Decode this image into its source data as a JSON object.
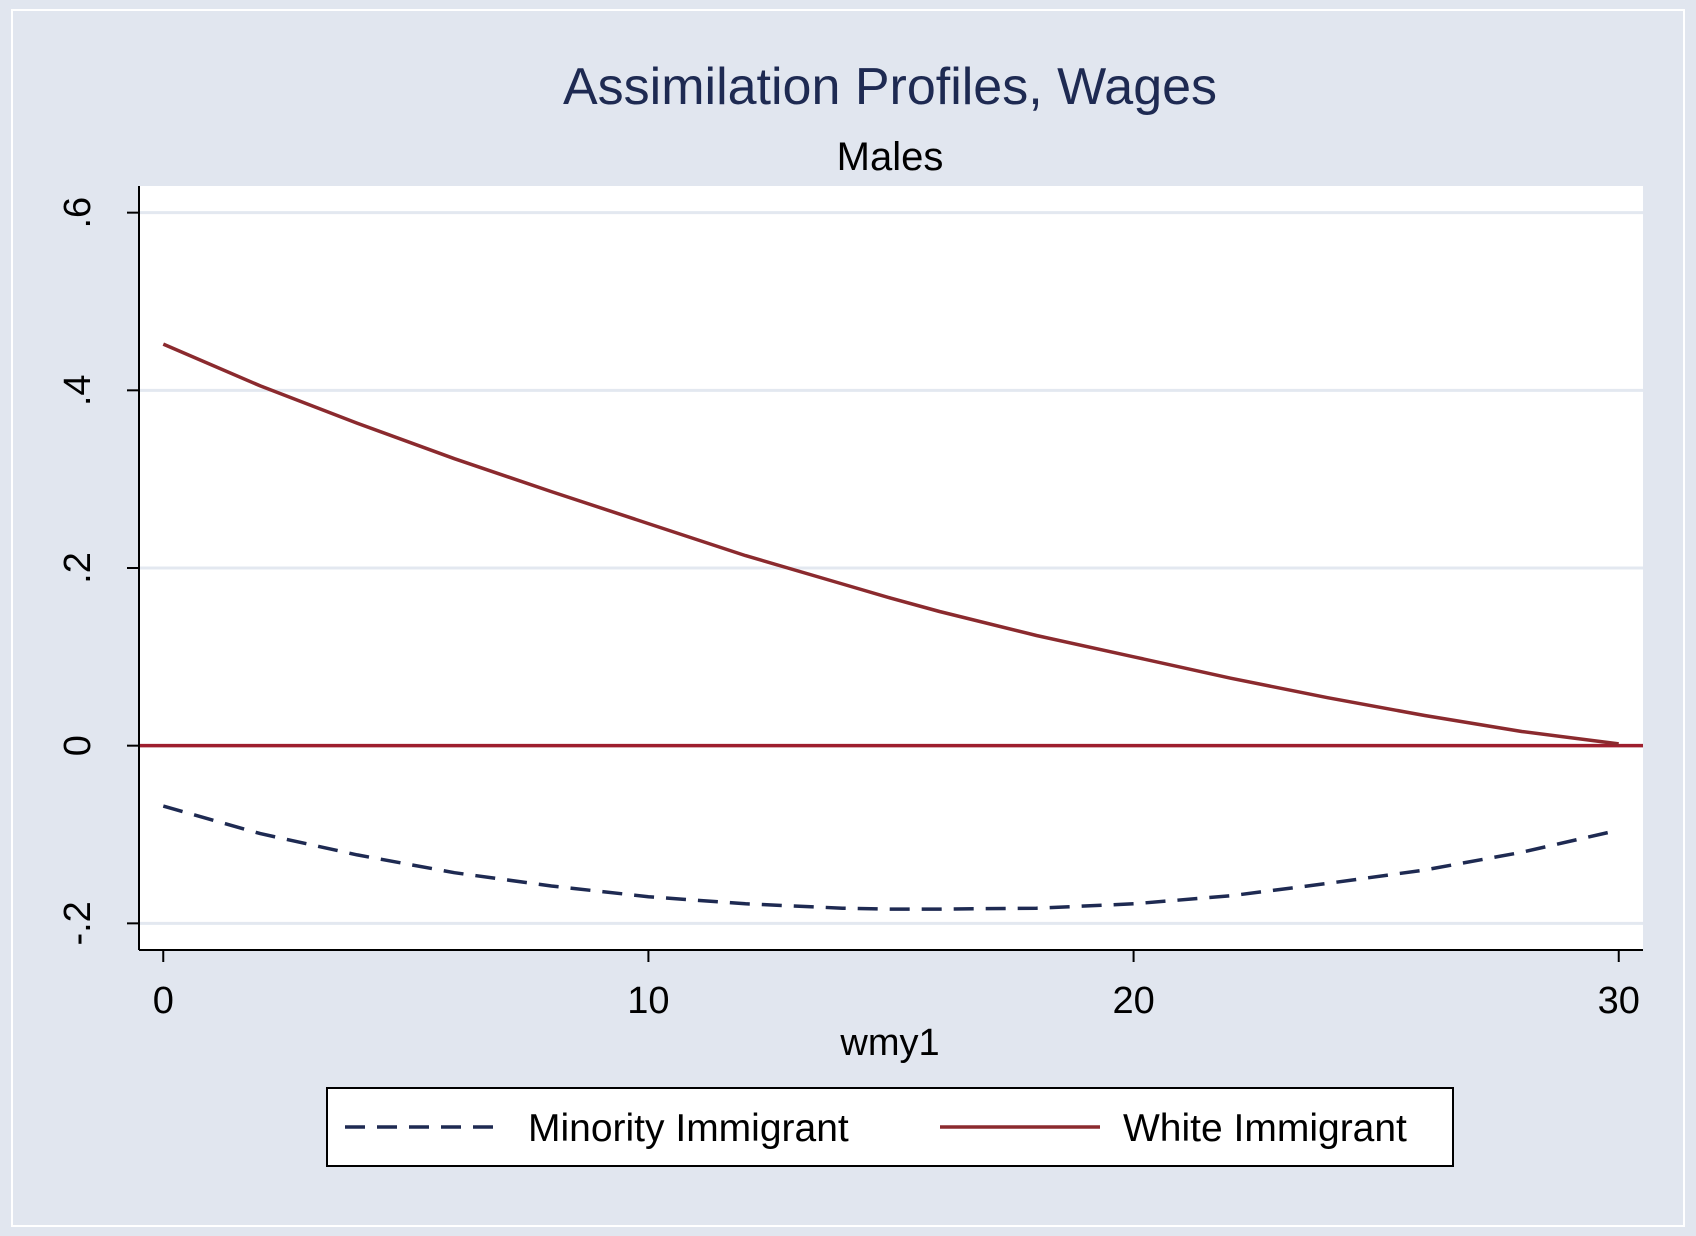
{
  "colors": {
    "outer_background": "#e1e6ef",
    "plot_background": "#ffffff",
    "gridline": "#e3e8f0",
    "axis": "#000000",
    "title": "#1e2a52",
    "subtitle": "#000000",
    "reference_line": "#9e1f2e"
  },
  "chart_data": {
    "type": "line",
    "title": "Assimilation Profiles, Wages",
    "subtitle": "Males",
    "xlabel": "wmy1",
    "ylabel": "",
    "xlim": [
      -0.5,
      30.5
    ],
    "ylim": [
      -0.23,
      0.63
    ],
    "xticks": [
      0,
      10,
      20,
      30
    ],
    "xtick_labels": [
      "0",
      "10",
      "20",
      "30"
    ],
    "yticks": [
      -0.2,
      0,
      0.2,
      0.4,
      0.6
    ],
    "ytick_labels": [
      "-.2",
      "0",
      ".2",
      ".4",
      ".6"
    ],
    "grid": true,
    "legend_position": "bottom",
    "reference_line": {
      "y": 0
    },
    "x": [
      0,
      2,
      4,
      6,
      8,
      10,
      12,
      14,
      15,
      16,
      18,
      20,
      22,
      24,
      26,
      28,
      30
    ],
    "series": [
      {
        "name": "Minority Immigrant",
        "style": "dashed",
        "color": "#1e2a52",
        "values": [
          -0.068,
          -0.099,
          -0.123,
          -0.143,
          -0.158,
          -0.17,
          -0.178,
          -0.183,
          -0.184,
          -0.184,
          -0.183,
          -0.178,
          -0.169,
          -0.155,
          -0.14,
          -0.12,
          -0.095
        ]
      },
      {
        "name": "White Immigrant",
        "style": "solid",
        "color": "#8b2a2e",
        "values": [
          0.452,
          0.405,
          0.363,
          0.323,
          0.286,
          0.25,
          0.214,
          0.182,
          0.166,
          0.151,
          0.124,
          0.1,
          0.076,
          0.054,
          0.034,
          0.016,
          0.002
        ]
      }
    ]
  }
}
